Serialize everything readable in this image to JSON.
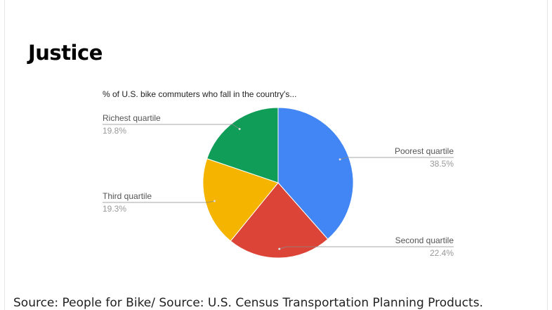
{
  "title": "Justice",
  "chart_data": {
    "type": "pie",
    "title": "% of U.S. bike commuters who fall in the country's...",
    "slices": [
      {
        "label": "Poorest quartile",
        "value": 38.5,
        "value_label": "38.5%",
        "color": "#4285f4"
      },
      {
        "label": "Second quartile",
        "value": 22.4,
        "value_label": "22.4%",
        "color": "#db4437"
      },
      {
        "label": "Third quartile",
        "value": 19.3,
        "value_label": "19.3%",
        "color": "#f4b400"
      },
      {
        "label": "Richest quartile",
        "value": 19.8,
        "value_label": "19.8%",
        "color": "#0f9d58"
      }
    ],
    "legend": "labels with leader lines"
  },
  "source": "Source: People for Bike/ Source: U.S. Census Transportation Planning Products."
}
